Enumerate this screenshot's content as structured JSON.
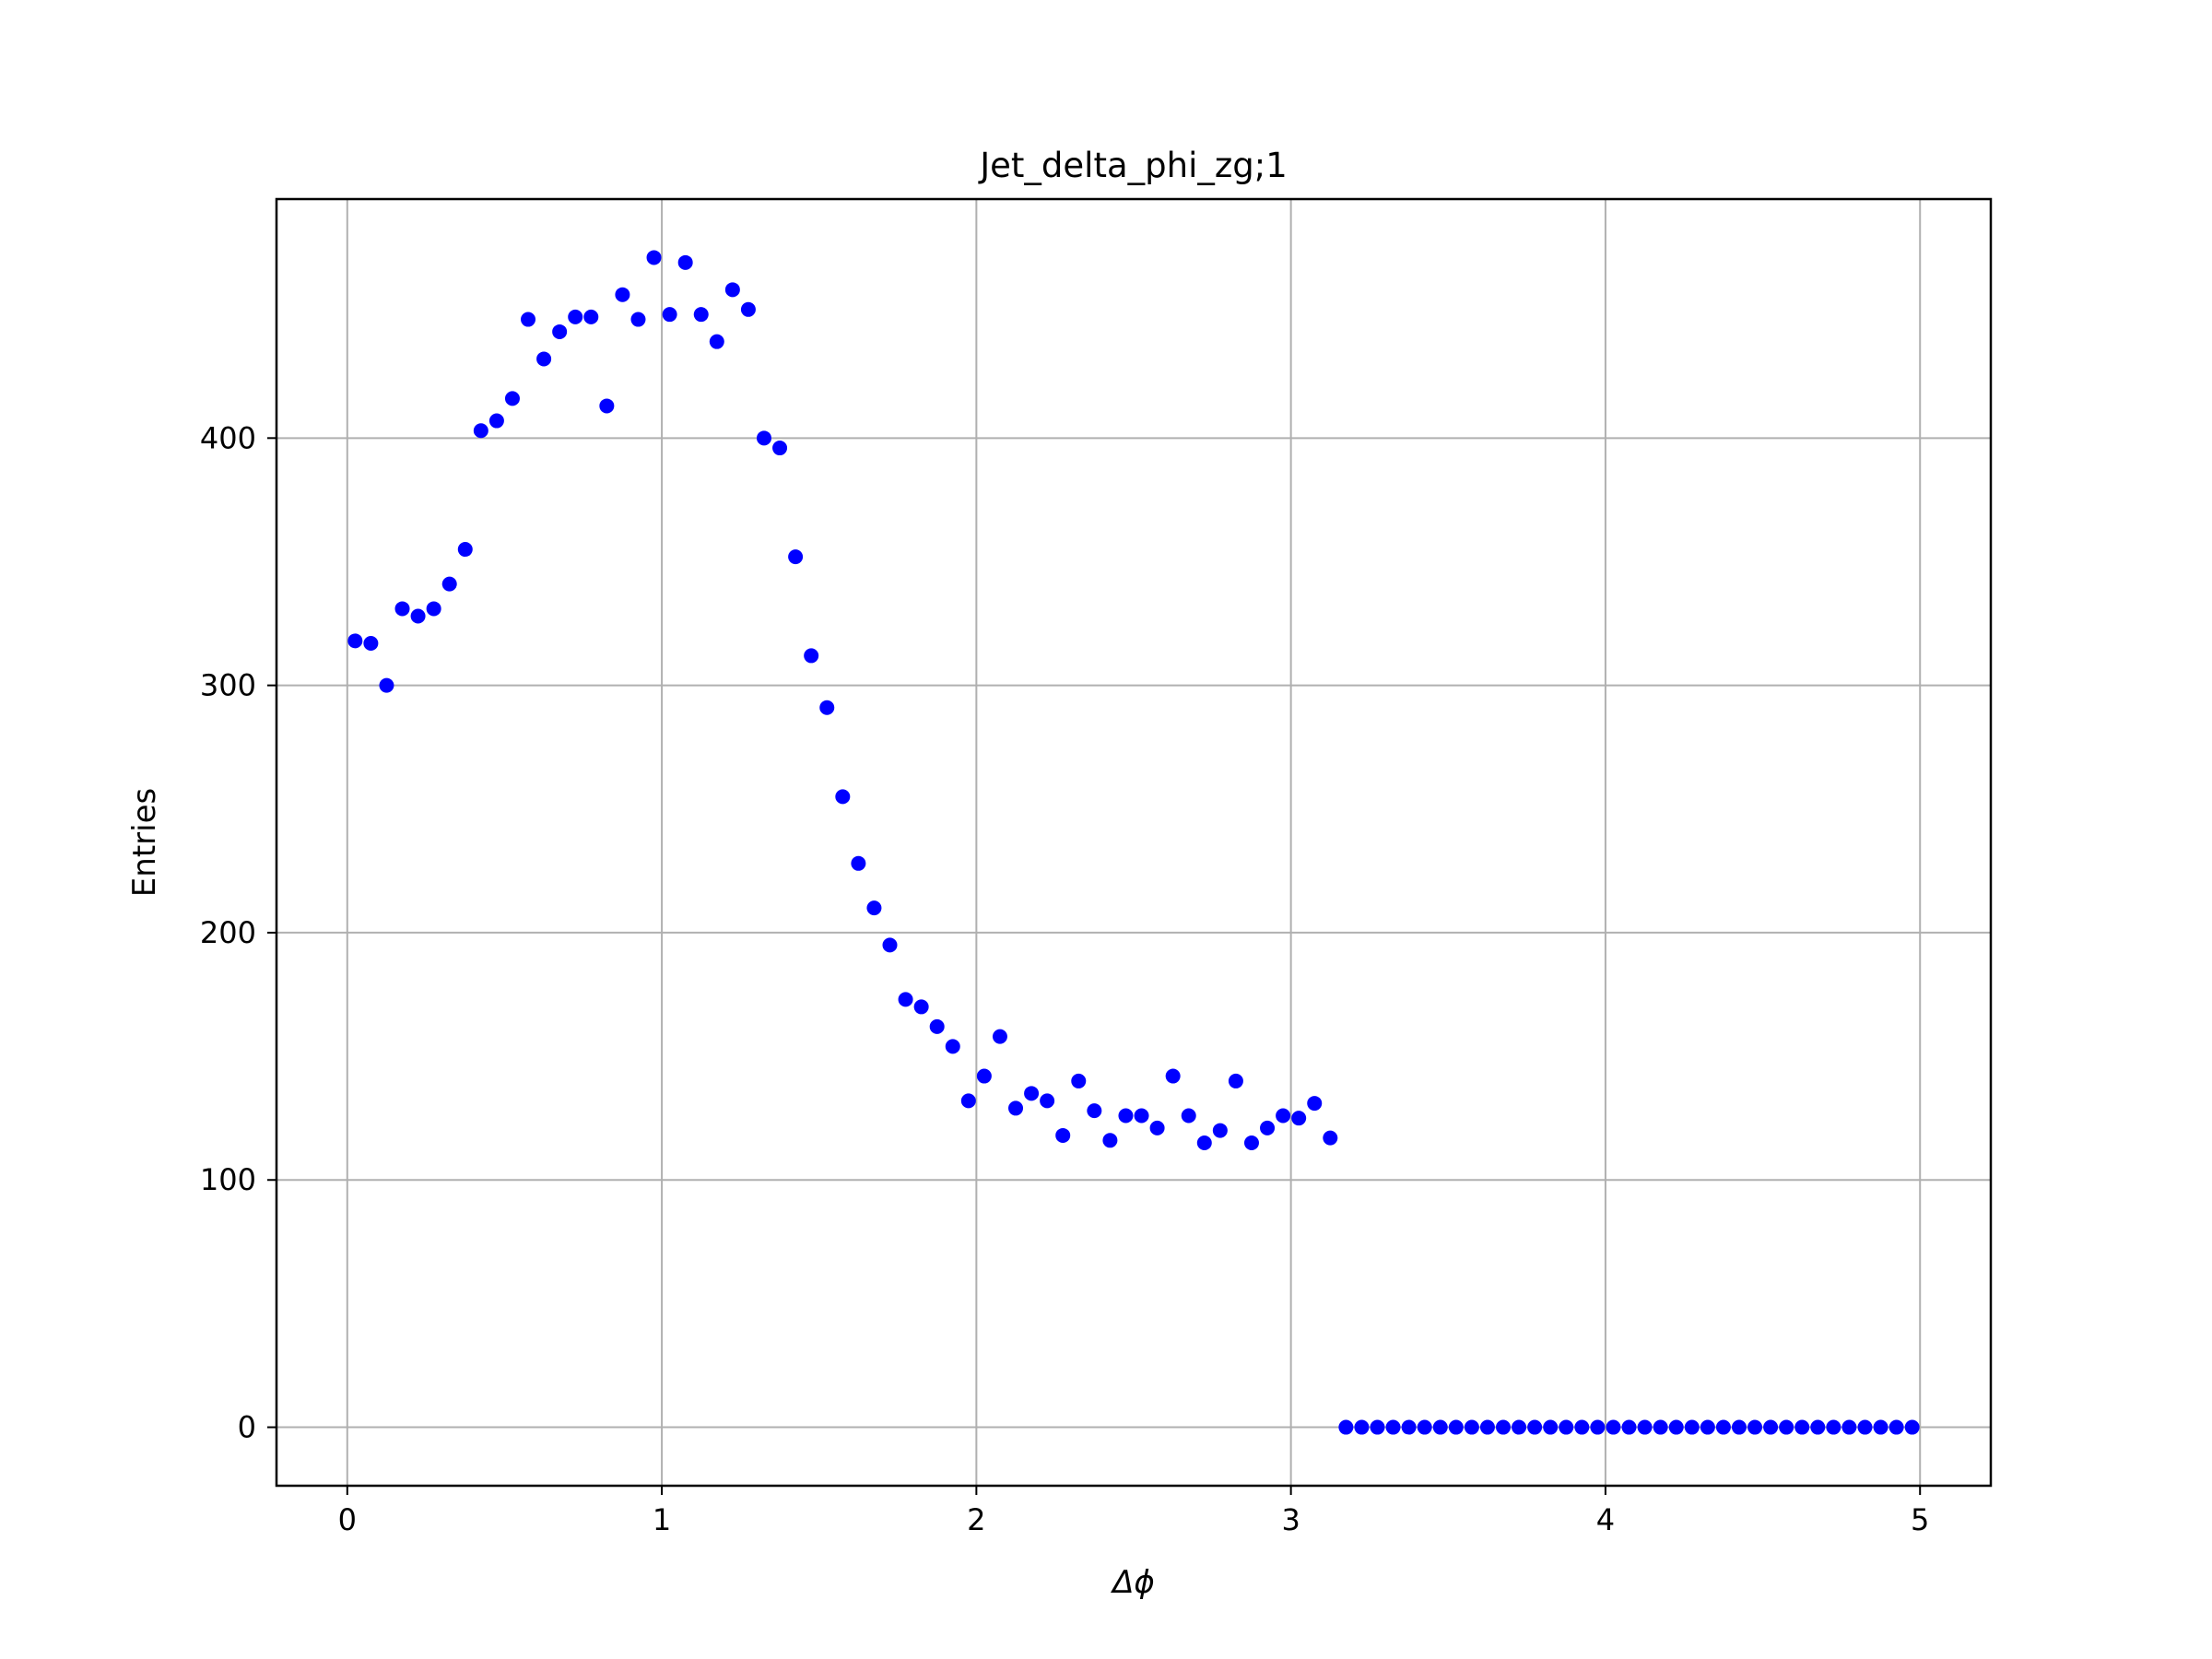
{
  "chart_data": {
    "type": "scatter",
    "title": "Jet_delta_phi_zg;1",
    "xlabel": "Δϕ",
    "ylabel": "Entries",
    "xlim": [
      -0.225,
      5.225
    ],
    "ylim": [
      -23.65,
      496.65
    ],
    "xticks": [
      0,
      1,
      2,
      3,
      4,
      5
    ],
    "yticks": [
      0,
      100,
      200,
      300,
      400
    ],
    "grid": true,
    "marker_color": "#0000ff",
    "x": [
      0.025,
      0.075,
      0.125,
      0.175,
      0.225,
      0.275,
      0.325,
      0.375,
      0.425,
      0.475,
      0.525,
      0.575,
      0.625,
      0.675,
      0.725,
      0.775,
      0.825,
      0.875,
      0.925,
      0.975,
      1.025,
      1.075,
      1.125,
      1.175,
      1.225,
      1.275,
      1.325,
      1.375,
      1.425,
      1.475,
      1.525,
      1.575,
      1.625,
      1.675,
      1.725,
      1.775,
      1.825,
      1.875,
      1.925,
      1.975,
      2.025,
      2.075,
      2.125,
      2.175,
      2.225,
      2.275,
      2.325,
      2.375,
      2.425,
      2.475,
      2.525,
      2.575,
      2.625,
      2.675,
      2.725,
      2.775,
      2.825,
      2.875,
      2.925,
      2.975,
      3.025,
      3.075,
      3.125,
      3.175,
      3.225,
      3.275,
      3.325,
      3.375,
      3.425,
      3.475,
      3.525,
      3.575,
      3.625,
      3.675,
      3.725,
      3.775,
      3.825,
      3.875,
      3.925,
      3.975,
      4.025,
      4.075,
      4.125,
      4.175,
      4.225,
      4.275,
      4.325,
      4.375,
      4.425,
      4.475,
      4.525,
      4.575,
      4.625,
      4.675,
      4.725,
      4.775,
      4.825,
      4.875,
      4.925,
      4.975
    ],
    "y": [
      318,
      317,
      300,
      331,
      328,
      331,
      341,
      355,
      403,
      407,
      416,
      448,
      432,
      443,
      449,
      449,
      413,
      458,
      448,
      473,
      450,
      471,
      450,
      439,
      460,
      452,
      400,
      396,
      352,
      312,
      291,
      255,
      228,
      210,
      195,
      173,
      170,
      162,
      154,
      132,
      142,
      158,
      129,
      135,
      132,
      118,
      140,
      128,
      116,
      126,
      126,
      121,
      142,
      126,
      115,
      120,
      140,
      115,
      121,
      126,
      125,
      131,
      117,
      0,
      0,
      0,
      0,
      0,
      0,
      0,
      0,
      0,
      0,
      0,
      0,
      0,
      0,
      0,
      0,
      0,
      0,
      0,
      0,
      0,
      0,
      0,
      0,
      0,
      0,
      0,
      0,
      0,
      0,
      0,
      0,
      0,
      0,
      0,
      0,
      0
    ]
  }
}
